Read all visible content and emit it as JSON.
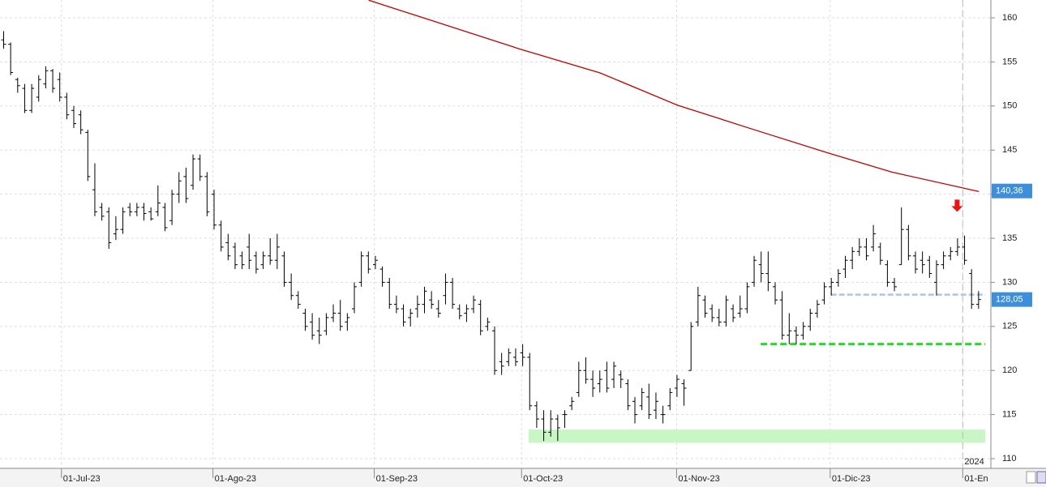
{
  "chart_data": {
    "type": "ohlc",
    "xlim": [
      0,
      140
    ],
    "ylim": [
      108.9,
      162.0
    ],
    "yticks": [
      110,
      115,
      120,
      125,
      130,
      135,
      140,
      145,
      150,
      155,
      160
    ],
    "xticks": [
      {
        "value": 8.3,
        "label": "01-Jul-23"
      },
      {
        "value": 29.9,
        "label": "01-Ago-23"
      },
      {
        "value": 52.9,
        "label": "01-Sep-23"
      },
      {
        "value": 73.9,
        "label": "01-Oct-23"
      },
      {
        "value": 96,
        "label": "01-Nov-23"
      },
      {
        "value": 117.9,
        "label": "01-Dic-23"
      },
      {
        "value": 136.8,
        "label": "01-En"
      }
    ],
    "grid": true,
    "bar_color": "#000000",
    "bars": [
      [
        157.5,
        158.5,
        156.5,
        157
      ],
      [
        157,
        157.2,
        153.5,
        153.8
      ],
      [
        153,
        153.2,
        151.5,
        152.3
      ],
      [
        152,
        152.5,
        149.2,
        149.5
      ],
      [
        149.5,
        152.5,
        149.2,
        152
      ],
      [
        151,
        153.5,
        150.5,
        153
      ],
      [
        152.5,
        154.5,
        152,
        154
      ],
      [
        154,
        154.2,
        151.5,
        152
      ],
      [
        153,
        153.8,
        150.5,
        151
      ],
      [
        151,
        151.5,
        148.5,
        149
      ],
      [
        149.5,
        150,
        147.5,
        148
      ],
      [
        149,
        149.5,
        146.8,
        147.3
      ],
      [
        147,
        147.3,
        141.5,
        142
      ],
      [
        140.5,
        143.5,
        137.5,
        138
      ],
      [
        138.5,
        139,
        137,
        137.5
      ],
      [
        138,
        138.5,
        133.8,
        134.5
      ],
      [
        135.5,
        137.5,
        134.8,
        136
      ],
      [
        136,
        138.5,
        135.5,
        138
      ],
      [
        138.5,
        139,
        137.5,
        138
      ],
      [
        138,
        139,
        137.5,
        138.5
      ],
      [
        138.5,
        139,
        137,
        137.8
      ],
      [
        138,
        138.5,
        137,
        137.2
      ],
      [
        138,
        141,
        137.5,
        139
      ],
      [
        138.5,
        139,
        135.8,
        136.2
      ],
      [
        137,
        140.5,
        136.5,
        140
      ],
      [
        140,
        142.5,
        139,
        141.5
      ],
      [
        142,
        143,
        139,
        139.5
      ],
      [
        141,
        144.5,
        140.5,
        144
      ],
      [
        144,
        144.5,
        141.5,
        142
      ],
      [
        142,
        142.5,
        137.5,
        138
      ],
      [
        140,
        140.5,
        136,
        136.5
      ],
      [
        136.5,
        137,
        133.5,
        134
      ],
      [
        134.5,
        135.5,
        132.5,
        133
      ],
      [
        134,
        134.5,
        131.5,
        132
      ],
      [
        133,
        133.5,
        131.5,
        132
      ],
      [
        134,
        135.5,
        131.5,
        132.5
      ],
      [
        133,
        133.5,
        131,
        131.5
      ],
      [
        132,
        133.5,
        131.5,
        133
      ],
      [
        133,
        135,
        132,
        132.5
      ],
      [
        132.5,
        135.5,
        131.5,
        134
      ],
      [
        133,
        133.5,
        129.5,
        130
      ],
      [
        130,
        131,
        128,
        128.5
      ],
      [
        128.5,
        129,
        127,
        127.5
      ],
      [
        126.5,
        127,
        124.5,
        125
      ],
      [
        125.5,
        126.5,
        123.5,
        124
      ],
      [
        124.5,
        126,
        123,
        124
      ],
      [
        124.5,
        126.5,
        124,
        126
      ],
      [
        126,
        127.5,
        125.5,
        126.5
      ],
      [
        126.5,
        128,
        124.5,
        125
      ],
      [
        125.5,
        126.5,
        124.5,
        126
      ],
      [
        127,
        130,
        126.5,
        129.5
      ],
      [
        130,
        133.5,
        129.5,
        133
      ],
      [
        133,
        133.5,
        131,
        131.5
      ],
      [
        132,
        133,
        131.5,
        132.5
      ],
      [
        131.5,
        131.8,
        129.5,
        130
      ],
      [
        130,
        130.5,
        127,
        127.5
      ],
      [
        127.5,
        128.5,
        126.5,
        127
      ],
      [
        127,
        127.5,
        125,
        125.5
      ],
      [
        126,
        127,
        125,
        126.5
      ],
      [
        127,
        128.5,
        126,
        127.5
      ],
      [
        127.5,
        129.5,
        126.5,
        129
      ],
      [
        128,
        129,
        127,
        127.5
      ],
      [
        127,
        128,
        126,
        126.5
      ],
      [
        128.5,
        131,
        127.5,
        130
      ],
      [
        130,
        130.5,
        127,
        127.5
      ],
      [
        127,
        127.5,
        125.8,
        126.2
      ],
      [
        126.5,
        127.5,
        125.5,
        127
      ],
      [
        127,
        128.5,
        126.5,
        128
      ],
      [
        127.5,
        128,
        124,
        124.5
      ],
      [
        125,
        126,
        124.5,
        125.5
      ],
      [
        124.5,
        125,
        119.5,
        120
      ],
      [
        121,
        122,
        119.5,
        120.5
      ],
      [
        121,
        122.5,
        120.5,
        122
      ],
      [
        121.5,
        122.5,
        120.5,
        121
      ],
      [
        122,
        123,
        120.5,
        121.5
      ],
      [
        121.5,
        122,
        115.5,
        116
      ],
      [
        116,
        116.5,
        113.5,
        114.5
      ],
      [
        114.5,
        115.5,
        112,
        113
      ],
      [
        113,
        115.5,
        112.5,
        114.5
      ],
      [
        114.5,
        115,
        112,
        113.5
      ],
      [
        115,
        115.5,
        113.5,
        115
      ],
      [
        116,
        117,
        115.5,
        116.5
      ],
      [
        117.5,
        121,
        117,
        120
      ],
      [
        120,
        121.5,
        118.5,
        119
      ],
      [
        119,
        120,
        117,
        118
      ],
      [
        118.5,
        120,
        117.5,
        119
      ],
      [
        120,
        121,
        117.5,
        118
      ],
      [
        119,
        121,
        118,
        120.5
      ],
      [
        119.5,
        120,
        118,
        119
      ],
      [
        118.5,
        119,
        115.5,
        116
      ],
      [
        116.5,
        117,
        114,
        115
      ],
      [
        116,
        118,
        115.5,
        117.5
      ],
      [
        117,
        118.5,
        114.5,
        115
      ],
      [
        115.5,
        117.5,
        114.5,
        116.5
      ],
      [
        115,
        116,
        114,
        115
      ],
      [
        116,
        118,
        115.5,
        117.5
      ],
      [
        118,
        119.5,
        117,
        119
      ],
      [
        118.5,
        119,
        116,
        118
      ],
      [
        120,
        125.5,
        120,
        125
      ],
      [
        125.5,
        129.5,
        125,
        128.5
      ],
      [
        128,
        128.5,
        126,
        126.5
      ],
      [
        127,
        127.5,
        125.5,
        126
      ],
      [
        126,
        127,
        125,
        125.5
      ],
      [
        125.5,
        128.5,
        125,
        128
      ],
      [
        127,
        127.5,
        125.5,
        126
      ],
      [
        126.5,
        128.5,
        126,
        127
      ],
      [
        127,
        130,
        126.5,
        129.5
      ],
      [
        130,
        133,
        129.5,
        132.5
      ],
      [
        132,
        133.5,
        130,
        131
      ],
      [
        131,
        133.5,
        129,
        130
      ],
      [
        129.5,
        130,
        127.5,
        128
      ],
      [
        128,
        129,
        123.5,
        124
      ],
      [
        124,
        126.5,
        123,
        124.5
      ],
      [
        124.5,
        125,
        123,
        124
      ],
      [
        124,
        125.5,
        123.5,
        125
      ],
      [
        125,
        127,
        124.5,
        126.5
      ],
      [
        126.5,
        128,
        126,
        127.5
      ],
      [
        128,
        130,
        127.5,
        129.5
      ],
      [
        129.5,
        130.5,
        128.5,
        130
      ],
      [
        130,
        131.5,
        129.5,
        131
      ],
      [
        131.5,
        133,
        130.5,
        132.5
      ],
      [
        132.5,
        134,
        131.5,
        133.5
      ],
      [
        133.5,
        135,
        133,
        134
      ],
      [
        134,
        135,
        132.5,
        133
      ],
      [
        134,
        136.5,
        133.5,
        135.5
      ],
      [
        134,
        134.5,
        132,
        132.5
      ],
      [
        132,
        132.5,
        129.5,
        130
      ],
      [
        130,
        130.5,
        129,
        129.5
      ],
      [
        132,
        138.5,
        132,
        136
      ],
      [
        136,
        136.5,
        132.5,
        133
      ],
      [
        133,
        133.5,
        131,
        131.5
      ],
      [
        132.5,
        133.5,
        131,
        132
      ],
      [
        132.5,
        133,
        130.5,
        131
      ],
      [
        130,
        132.5,
        128.5,
        132
      ],
      [
        132,
        133.5,
        131.5,
        133
      ],
      [
        133,
        134,
        132.5,
        133.5
      ],
      [
        133.5,
        135,
        133,
        134
      ],
      [
        134,
        135.3,
        132,
        132.5
      ],
      [
        131,
        131.5,
        127,
        127.5
      ],
      [
        127.5,
        129,
        127,
        128.05
      ]
    ],
    "moving_average": {
      "color": "#c00000",
      "x": [
        52.1,
        73.5,
        85.1,
        96.1,
        107.1,
        117.5,
        126.7,
        139.1
      ],
      "values": [
        162.0,
        156.5,
        153.75,
        150.1,
        147.3,
        144.7,
        142.5,
        140.3
      ]
    },
    "levels": [
      {
        "value": 128.6,
        "x": [
          118,
          140
        ],
        "color": "#a8c8e8"
      },
      {
        "value": 123,
        "x": [
          108,
          140
        ],
        "color": "#22dd22"
      }
    ],
    "zone": {
      "y": [
        111.8,
        113.3
      ],
      "x": [
        74.9,
        140
      ],
      "color": "#c8f7c5"
    },
    "arrow": {
      "x": 136,
      "y": 138,
      "color": "#ee1111"
    },
    "year_marker": {
      "x": 136.8,
      "label": "2024"
    },
    "price_tags": [
      {
        "value": 140.36,
        "label": "140,36"
      },
      {
        "value": 128.05,
        "label": "128,05"
      }
    ]
  }
}
